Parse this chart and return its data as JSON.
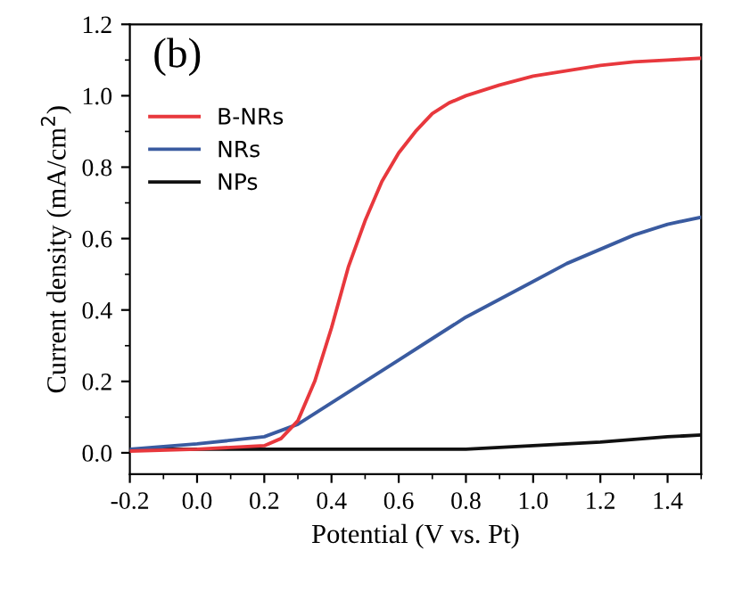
{
  "chart_data": {
    "type": "line",
    "xlabel": "Potential (V vs. Pt)",
    "ylabel": "Current density (mA/cm$^{2}$)",
    "annotations": [
      "(b)"
    ],
    "xlim": [
      -0.2,
      1.5
    ],
    "ylim": [
      -0.06,
      1.2
    ],
    "xticks": [
      -0.2,
      {
        "value": 0,
        "label": "0.0"
      },
      0.2,
      0.4,
      0.6,
      0.8,
      {
        "value": 1,
        "label": "1.0"
      },
      1.2,
      1.4
    ],
    "yticks": [
      {
        "value": 0,
        "label": "0.0"
      },
      0.2,
      0.4,
      0.6,
      0.8,
      {
        "value": 1,
        "label": "1.0"
      },
      1.2
    ],
    "legend": "top left",
    "grid": false,
    "marker": "none",
    "line_style": "solid",
    "series": [
      {
        "name": "B-NRs",
        "color": "#e8383d",
        "x": [
          -0.2,
          0,
          0.2,
          0.25,
          0.3,
          0.35,
          0.4,
          0.45,
          0.5,
          0.55,
          0.6,
          0.65,
          0.7,
          0.75,
          0.8,
          0.9,
          1.0,
          1.1,
          1.2,
          1.3,
          1.4,
          1.5
        ],
        "values": [
          0.005,
          0.01,
          0.02,
          0.04,
          0.09,
          0.2,
          0.35,
          0.52,
          0.65,
          0.76,
          0.84,
          0.9,
          0.95,
          0.98,
          1.0,
          1.03,
          1.055,
          1.07,
          1.085,
          1.095,
          1.1,
          1.105
        ]
      },
      {
        "name": "NRs",
        "color": "#3a5ba0",
        "x": [
          -0.2,
          0,
          0.2,
          0.3,
          0.4,
          0.5,
          0.6,
          0.7,
          0.8,
          0.9,
          1.0,
          1.1,
          1.2,
          1.3,
          1.4,
          1.5
        ],
        "values": [
          0.01,
          0.025,
          0.045,
          0.08,
          0.14,
          0.2,
          0.26,
          0.32,
          0.38,
          0.43,
          0.48,
          0.53,
          0.57,
          0.61,
          0.64,
          0.66
        ]
      },
      {
        "name": "NPs",
        "color": "#111111",
        "x": [
          -0.2,
          0.8,
          1.0,
          1.2,
          1.4,
          1.5
        ],
        "values": [
          0.01,
          0.01,
          0.02,
          0.03,
          0.045,
          0.05
        ]
      }
    ]
  }
}
